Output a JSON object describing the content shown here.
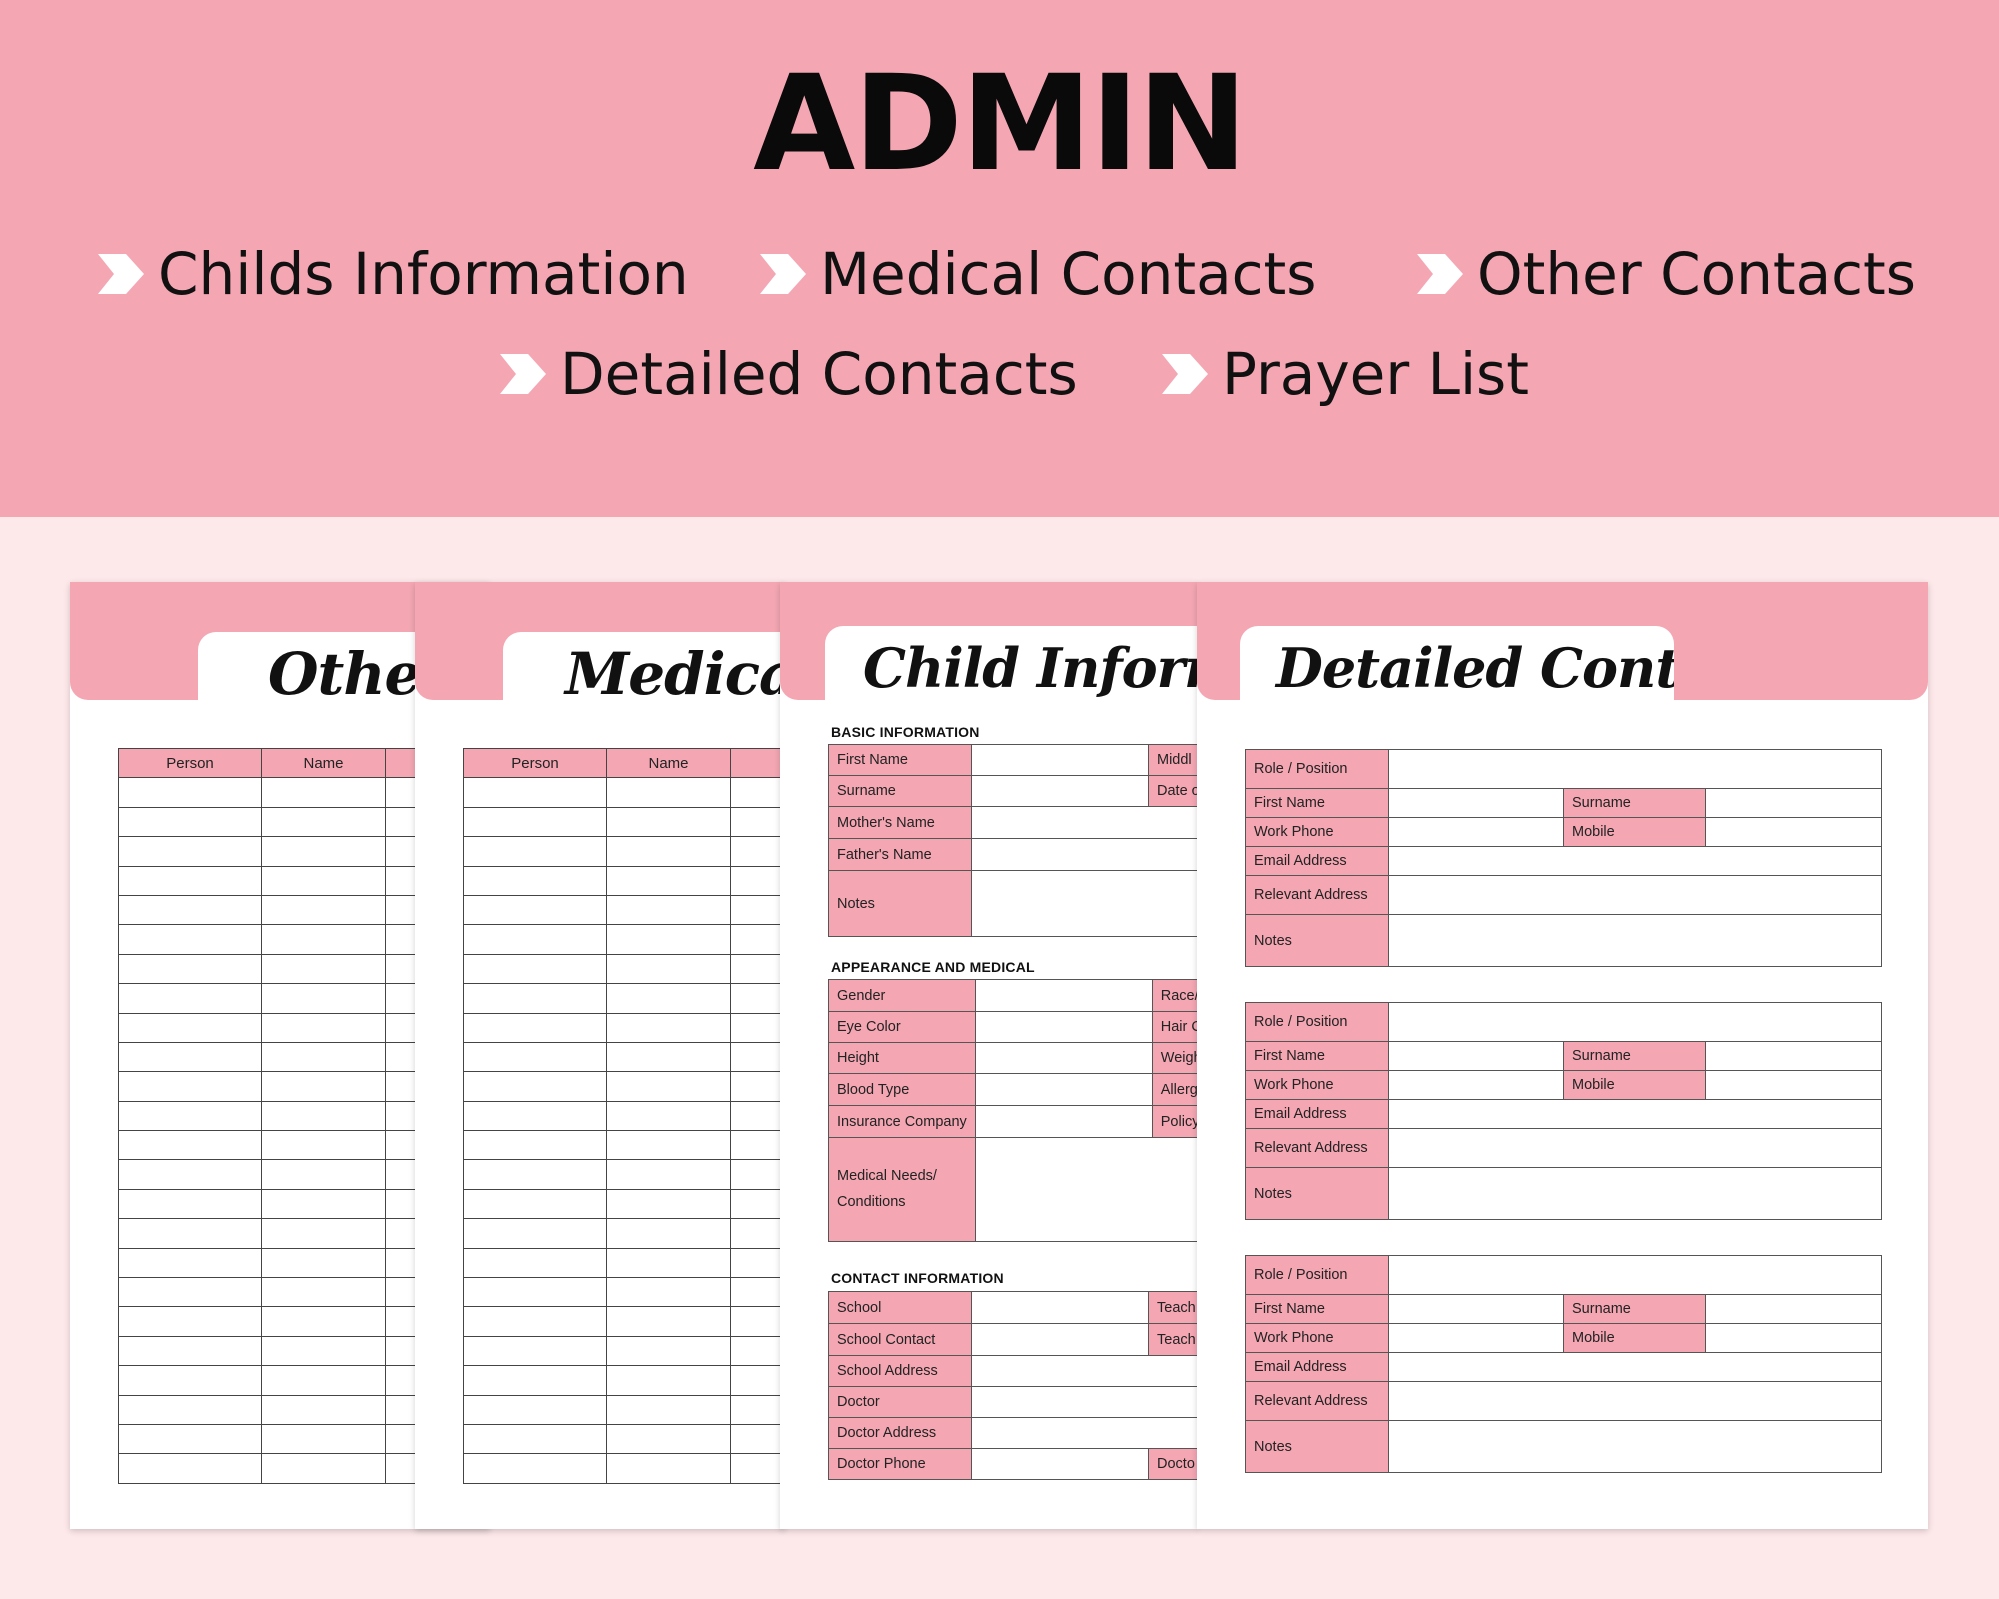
{
  "banner": {
    "title": "ADMIN",
    "features": [
      "Childs Information",
      "Medical Contacts",
      "Other Contacts",
      "Detailed Contacts",
      "Prayer List"
    ]
  },
  "pages": {
    "other": {
      "title": "Other",
      "headers": [
        "Person",
        "Name",
        ""
      ]
    },
    "medical": {
      "title": "Medical",
      "headers": [
        "Person",
        "Name",
        ""
      ]
    },
    "child": {
      "title": "Child Informatio",
      "basic": {
        "heading": "BASIC INFORMATION",
        "first_name": "First Name",
        "middle": "Middl",
        "surname": "Surname",
        "date": "Date o",
        "mothers_name": "Mother's Name",
        "fathers_name": "Father's Name",
        "notes": "Notes"
      },
      "appearance": {
        "heading": "APPEARANCE AND MEDICAL",
        "gender": "Gender",
        "race": "Race/",
        "eye_color": "Eye Color",
        "hair": "Hair C",
        "height": "Height",
        "weight": "Weigh",
        "blood_type": "Blood Type",
        "allergies": "Allergi",
        "insurance": "Insurance Company",
        "policy": "Policy",
        "medical_needs_1": "Medical Needs/",
        "medical_needs_2": "Conditions"
      },
      "contact": {
        "heading": "CONTACT INFORMATION",
        "school": "School",
        "teacher": "Teach",
        "school_contact": "School Contact",
        "teacher2": "Teach",
        "school_address": "School Address",
        "doctor": "Doctor",
        "doctor_address": "Doctor Address",
        "doctor_phone": "Doctor Phone",
        "doctor_right": "Docto"
      }
    },
    "detailed": {
      "title": "Detailed Contacts",
      "blocks": [
        {
          "role": "Role / Position",
          "first_name": "First Name",
          "surname": "Surname",
          "work_phone": "Work Phone",
          "mobile": "Mobile",
          "email": "Email Address",
          "relevant_address": "Relevant Address",
          "notes": "Notes"
        },
        {
          "role": "Role / Position",
          "first_name": "First Name",
          "surname": "Surname",
          "work_phone": "Work Phone",
          "mobile": "Mobile",
          "email": "Email Address",
          "relevant_address": "Relevant Address",
          "notes": "Notes"
        },
        {
          "role": "Role / Position",
          "first_name": "First Name",
          "surname": "Surname",
          "work_phone": "Work Phone",
          "mobile": "Mobile",
          "email": "Email Address",
          "relevant_address": "Relevant Address",
          "notes": "Notes"
        }
      ]
    }
  }
}
